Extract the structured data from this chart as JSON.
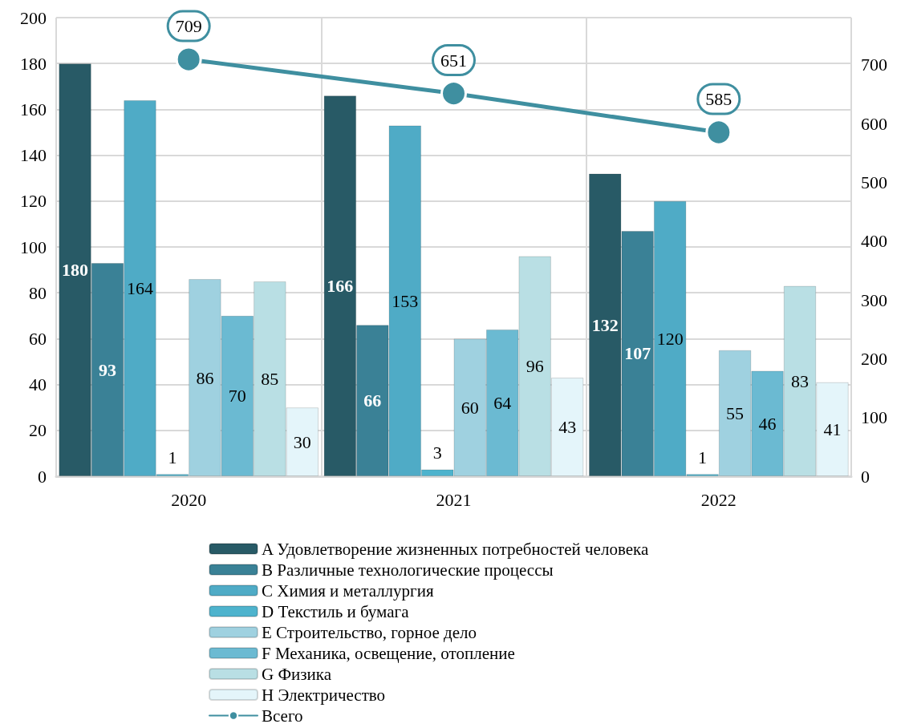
{
  "chart_data": {
    "type": "bar",
    "categories": [
      "2020",
      "2021",
      "2022"
    ],
    "series": [
      {
        "name": "A Удовлетворение жизненных потребностей человека",
        "color": "#285a66",
        "values": [
          180,
          166,
          132
        ]
      },
      {
        "name": "B Различные технологические процессы",
        "color": "#3a8196",
        "values": [
          93,
          66,
          107
        ]
      },
      {
        "name": "C Химия и металлургия",
        "color": "#4fabc6",
        "values": [
          164,
          153,
          120
        ]
      },
      {
        "name": "D Текстиль и бумага",
        "color": "#4eb3cd",
        "values": [
          1,
          3,
          1
        ]
      },
      {
        "name": "E Строительство, горное дело",
        "color": "#9fd1e0",
        "values": [
          86,
          60,
          55
        ]
      },
      {
        "name": "F Механика, освещение, отопление",
        "color": "#6bbad2",
        "values": [
          70,
          64,
          46
        ]
      },
      {
        "name": "G Физика",
        "color": "#b9dfe4",
        "values": [
          85,
          96,
          83
        ]
      },
      {
        "name": "H Электричество",
        "color": "#e4f5fa",
        "values": [
          30,
          43,
          41
        ]
      },
      {
        "name": "Всего",
        "type": "line",
        "axis": "y2",
        "color": "#3f8fa0",
        "marker": "circle",
        "values": [
          709,
          651,
          585
        ]
      }
    ],
    "ylim": [
      0,
      200
    ],
    "yticks": [
      0,
      20,
      40,
      60,
      80,
      100,
      120,
      140,
      160,
      180,
      200
    ],
    "y2lim": [
      0,
      780
    ],
    "y2ticks": [
      0,
      100,
      200,
      300,
      400,
      500,
      600,
      700
    ],
    "grid": true,
    "legend": "bottom",
    "data_labels": true
  }
}
